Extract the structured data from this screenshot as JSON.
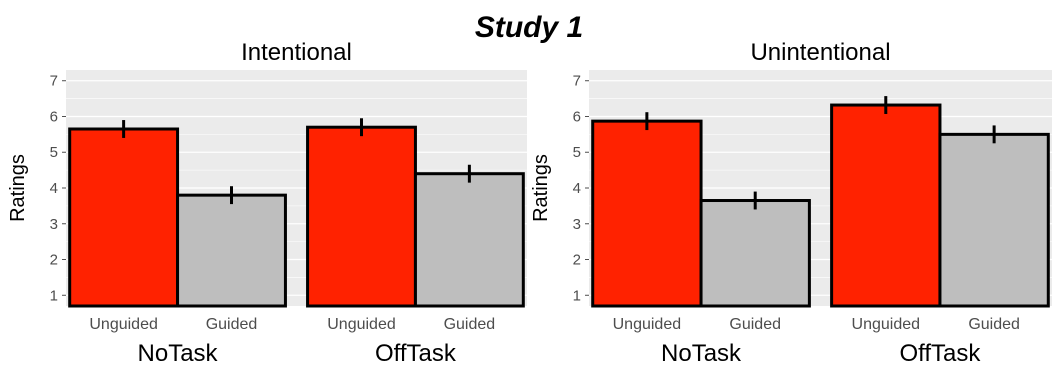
{
  "figure_title": "Study 1",
  "chart_data": [
    {
      "type": "bar",
      "title": "Intentional",
      "ylabel": "Ratings",
      "xlabel": "",
      "ylim": [
        0.7,
        7.3
      ],
      "yticks": [
        "1",
        "2",
        "3",
        "4",
        "5",
        "6",
        "7"
      ],
      "groups": [
        {
          "name": "NoTask",
          "bars": [
            {
              "label": "Unguided",
              "value": 5.65,
              "error": 0.25,
              "color": "#ff2200"
            },
            {
              "label": "Guided",
              "value": 3.8,
              "error": 0.25,
              "color": "#bebebe"
            }
          ]
        },
        {
          "name": "OffTask",
          "bars": [
            {
              "label": "Unguided",
              "value": 5.7,
              "error": 0.25,
              "color": "#ff2200"
            },
            {
              "label": "Guided",
              "value": 4.4,
              "error": 0.25,
              "color": "#bebebe"
            }
          ]
        }
      ]
    },
    {
      "type": "bar",
      "title": "Unintentional",
      "ylabel": "Ratings",
      "xlabel": "",
      "ylim": [
        0.7,
        7.3
      ],
      "yticks": [
        "1",
        "2",
        "3",
        "4",
        "5",
        "6",
        "7"
      ],
      "groups": [
        {
          "name": "NoTask",
          "bars": [
            {
              "label": "Unguided",
              "value": 5.87,
              "error": 0.25,
              "color": "#ff2200"
            },
            {
              "label": "Guided",
              "value": 3.65,
              "error": 0.25,
              "color": "#bebebe"
            }
          ]
        },
        {
          "name": "OffTask",
          "bars": [
            {
              "label": "Unguided",
              "value": 6.32,
              "error": 0.25,
              "color": "#ff2200"
            },
            {
              "label": "Guided",
              "value": 5.5,
              "error": 0.25,
              "color": "#bebebe"
            }
          ]
        }
      ]
    }
  ],
  "colors": {
    "panel_background": "#ebebeb",
    "gridline": "#ffffff",
    "unguided": "#ff2200",
    "guided": "#bebebe",
    "outline": "#000000"
  }
}
